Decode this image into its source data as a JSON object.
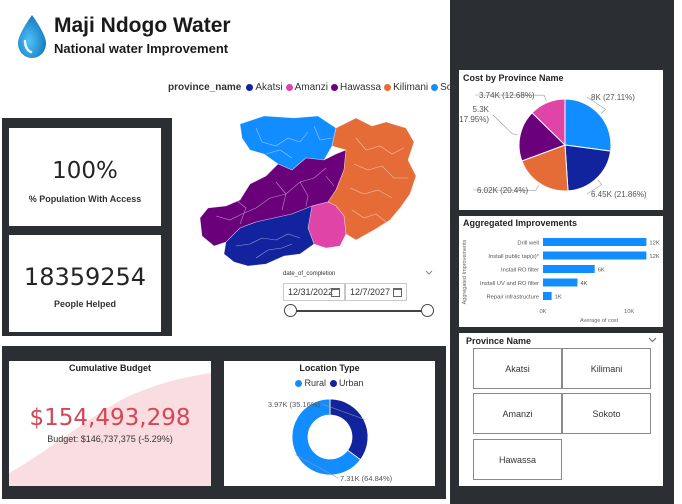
{
  "header": {
    "title": "Maji Ndogo Water",
    "subtitle": "National water Improvement"
  },
  "map": {
    "legend_title": "province_name",
    "legend": [
      {
        "name": "Akatsi",
        "color": "#12239e"
      },
      {
        "name": "Amanzi",
        "color": "#e044a7"
      },
      {
        "name": "Hawassa",
        "color": "#6b007b"
      },
      {
        "name": "Kilimani",
        "color": "#e66c37"
      },
      {
        "name": "Sokoto",
        "color": "#118dff"
      }
    ]
  },
  "kpis": {
    "access_value": "100%",
    "access_label": "% Population With Access",
    "helped_value": "18359254",
    "helped_label": "People Helped"
  },
  "date_slicer": {
    "label": "date_of_completion",
    "start": "12/31/2022",
    "end": "12/7/2027"
  },
  "budget": {
    "title": "Cumulative Budget",
    "value": "$154,493,298",
    "target": "Budget: $146,737,375 (-5.29%)"
  },
  "province_slicer": {
    "title": "Province Name",
    "items": [
      "Akatsi",
      "Kilimani",
      "Amanzi",
      "Sokoto",
      "Hawassa"
    ]
  },
  "chart_data": [
    {
      "type": "pie",
      "title": "Cost by Province Name",
      "slices": [
        {
          "value": 8,
          "label": "8K (27.11%)",
          "percent": 27.11,
          "color": "#118dff"
        },
        {
          "value": 6.45,
          "label": "6.45K (21.86%)",
          "percent": 21.86,
          "color": "#12239e"
        },
        {
          "value": 6.02,
          "label": "6.02K (20.4%)",
          "percent": 20.4,
          "color": "#e66c37"
        },
        {
          "value": 5.3,
          "label": "5.3K (17.95%)",
          "percent": 17.95,
          "color": "#6b007b"
        },
        {
          "value": 3.74,
          "label": "3.74K (12.68%)",
          "percent": 12.68,
          "color": "#e044a7"
        }
      ]
    },
    {
      "type": "bar",
      "orientation": "horizontal",
      "title": "Aggregated Improvements",
      "ylabel": "Aggregated Improvements",
      "xlabel": "Average of cost",
      "categories": [
        "Drill well",
        "Install public tap(s)*",
        "Install RO filter",
        "Install UV and RO filter",
        "Repair infrastructure"
      ],
      "values": [
        12000,
        12000,
        6000,
        4000,
        1000
      ],
      "data_labels": [
        "12K",
        "12K",
        "6K",
        "4K",
        "1K"
      ],
      "xticks": [
        "0K",
        "10K"
      ],
      "xlim": [
        0,
        13000
      ],
      "color": "#118dff"
    },
    {
      "type": "pie",
      "subtype": "donut",
      "title": "Location Type",
      "legend": [
        "Rural",
        "Urban"
      ],
      "slices": [
        {
          "name": "Rural",
          "value": 7.31,
          "label": "7.31K (64.84%)",
          "percent": 64.84,
          "color": "#118dff"
        },
        {
          "name": "Urban",
          "value": 3.97,
          "label": "3.97K (35.16%)",
          "percent": 35.16,
          "color": "#12239e"
        }
      ]
    }
  ]
}
